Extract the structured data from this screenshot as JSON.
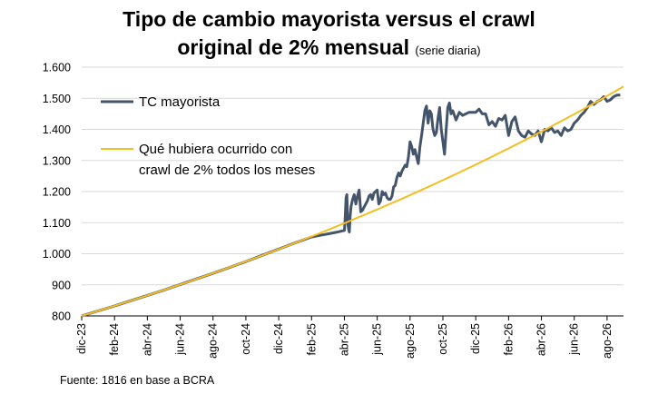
{
  "chart_data": {
    "type": "line",
    "title_line1": "Tipo de cambio mayorista versus el crawl",
    "title_line2": "original de 2% mensual",
    "subtitle": "(serie diaria)",
    "source": "Fuente: 1816 en base a BCRA",
    "ylim": [
      800,
      1600
    ],
    "yticks": [
      "800",
      "900",
      "1.000",
      "1.100",
      "1.200",
      "1.300",
      "1.400",
      "1.500",
      "1.600"
    ],
    "ytick_values": [
      800,
      900,
      1000,
      1100,
      1200,
      1300,
      1400,
      1500,
      1600
    ],
    "xlim": [
      0,
      33
    ],
    "xticks": [
      "dic-23",
      "feb-24",
      "abr-24",
      "jun-24",
      "ago-24",
      "oct-24",
      "dic-24",
      "feb-25",
      "abr-25",
      "jun-25",
      "ago-25",
      "oct-25",
      "dic-25",
      "feb-26",
      "abr-26",
      "jun-26",
      "ago-26"
    ],
    "xtick_months": [
      0,
      2,
      4,
      6,
      8,
      10,
      12,
      14,
      16,
      18,
      20,
      22,
      24,
      26,
      28,
      30,
      32
    ],
    "grid": "horizontal",
    "legend_position": "top-left",
    "series": [
      {
        "name": "TC mayorista",
        "color": "#44546A",
        "x": [
          0,
          1,
          2,
          3,
          4,
          5,
          6,
          7,
          8,
          9,
          10,
          11,
          12,
          13,
          14,
          14.5,
          15,
          15.5,
          16,
          16.05,
          16.1,
          16.15,
          16.2,
          16.25,
          16.3,
          16.35,
          16.4,
          16.5,
          16.6,
          16.7,
          16.8,
          16.9,
          17,
          17.1,
          17.15,
          17.2,
          17.3,
          17.4,
          17.5,
          17.6,
          17.7,
          17.8,
          17.9,
          18,
          18.1,
          18.2,
          18.3,
          18.4,
          18.5,
          18.6,
          18.7,
          18.8,
          18.9,
          19,
          19.1,
          19.2,
          19.3,
          19.4,
          19.5,
          19.6,
          19.7,
          19.8,
          19.9,
          20,
          20.1,
          20.2,
          20.3,
          20.4,
          20.5,
          20.6,
          20.7,
          20.8,
          20.9,
          21,
          21.1,
          21.2,
          21.3,
          21.4,
          21.5,
          21.6,
          21.7,
          21.8,
          21.9,
          22,
          22.1,
          22.2,
          22.3,
          22.4,
          22.5,
          22.6,
          22.8,
          23,
          23.2,
          23.4,
          23.6,
          23.8,
          24,
          24.2,
          24.4,
          24.6,
          24.8,
          25,
          25.2,
          25.4,
          25.6,
          25.8,
          26,
          26.2,
          26.4,
          26.6,
          26.8,
          27,
          27.2,
          27.4,
          27.6,
          27.8,
          28,
          28.2,
          28.4,
          28.6,
          28.8,
          29,
          29.2,
          29.4,
          29.6,
          29.8,
          30,
          30.2,
          30.4,
          30.6,
          30.8,
          31,
          31.2,
          31.4,
          31.6,
          31.8,
          32,
          32.2,
          32.4,
          32.6,
          32.8
        ],
        "y": [
          800,
          816,
          832,
          849,
          866,
          883,
          901,
          919,
          937,
          956,
          975,
          995,
          1015,
          1035,
          1054,
          1059,
          1064,
          1069,
          1075,
          1120,
          1180,
          1190,
          1100,
          1080,
          1070,
          1120,
          1150,
          1175,
          1190,
          1160,
          1185,
          1205,
          1135,
          1140,
          1145,
          1150,
          1160,
          1170,
          1185,
          1190,
          1175,
          1195,
          1200,
          1205,
          1160,
          1170,
          1200,
          1190,
          1195,
          1180,
          1175,
          1175,
          1185,
          1215,
          1220,
          1245,
          1260,
          1250,
          1265,
          1275,
          1285,
          1280,
          1310,
          1360,
          1345,
          1320,
          1335,
          1310,
          1290,
          1345,
          1380,
          1420,
          1460,
          1475,
          1420,
          1460,
          1450,
          1400,
          1380,
          1390,
          1435,
          1470,
          1400,
          1360,
          1320,
          1400,
          1470,
          1485,
          1450,
          1460,
          1430,
          1455,
          1445,
          1450,
          1455,
          1455,
          1455,
          1465,
          1450,
          1450,
          1415,
          1425,
          1410,
          1435,
          1430,
          1445,
          1380,
          1425,
          1440,
          1395,
          1380,
          1375,
          1395,
          1385,
          1380,
          1395,
          1360,
          1400,
          1395,
          1405,
          1390,
          1395,
          1380,
          1405,
          1395,
          1400,
          1420,
          1430,
          1445,
          1455,
          1470,
          1490,
          1480,
          1490,
          1495,
          1505,
          1490,
          1495,
          1505,
          1510,
          1510
        ]
      },
      {
        "name": "Qué hubiera ocurrido con crawl de 2% todos los meses",
        "legend_line1": "Qué hubiera ocurrido con",
        "legend_line2": "crawl de 2% todos los meses",
        "color": "#F5BE22",
        "base": 800,
        "monthly_rate": 0.02
      }
    ]
  }
}
